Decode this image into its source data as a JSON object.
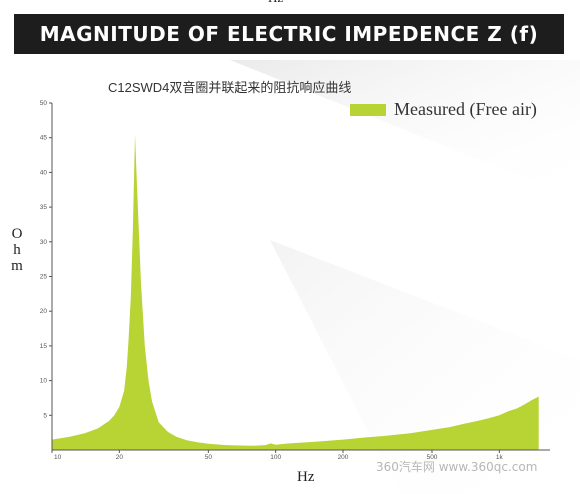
{
  "header": {
    "top_unit": "Hz",
    "title": "MAGNITUDE OF ELECTRIC IMPEDENCE Z (f)",
    "subtitle": "C12SWD4双音圈并联起来的阻抗响应曲线"
  },
  "watermark": "360汽车网 www.360qc.com",
  "colors": {
    "fill": "#b8d334",
    "title_bg": "#1d1d1d"
  },
  "chart_data": {
    "type": "area",
    "title": "MAGNITUDE OF ELECTRIC IMPEDENCE Z (f)",
    "subtitle": "C12SWD4双音圈并联起来的阻抗响应曲线",
    "xlabel": "Hz",
    "ylabel": "Ohm",
    "x_scale": "log",
    "xlim": [
      10,
      1600
    ],
    "ylim": [
      0,
      50
    ],
    "x_ticks": [
      10,
      20,
      50,
      100,
      200,
      500,
      1000
    ],
    "x_tick_labels": [
      "10",
      "20",
      "50",
      "100",
      "200",
      "500",
      "1k"
    ],
    "y_ticks": [
      5,
      10,
      15,
      20,
      25,
      30,
      35,
      40,
      45,
      50
    ],
    "y_tick_labels": [
      "5",
      "10",
      "15",
      "20",
      "25",
      "30",
      "35",
      "40",
      "45",
      "50"
    ],
    "legend": "top-right",
    "grid": false,
    "series": [
      {
        "name": "Measured (Free air)",
        "x": [
          10,
          12,
          14,
          16,
          18,
          19,
          20,
          21,
          21.6,
          22,
          22.5,
          23,
          23.5,
          24,
          25,
          26,
          27,
          28,
          30,
          33,
          36,
          40,
          45,
          50,
          60,
          70,
          80,
          90,
          95,
          100,
          110,
          120,
          150,
          200,
          250,
          300,
          400,
          500,
          600,
          700,
          800,
          900,
          1000,
          1100,
          1200,
          1300,
          1400,
          1500
        ],
        "y": [
          1.5,
          1.9,
          2.4,
          3.1,
          4.2,
          5.0,
          6.2,
          8.5,
          12,
          16,
          22,
          32,
          45.5,
          38,
          24,
          15,
          10,
          7,
          4,
          2.6,
          1.9,
          1.4,
          1.1,
          0.9,
          0.7,
          0.65,
          0.6,
          0.7,
          0.95,
          0.75,
          0.9,
          1.0,
          1.2,
          1.5,
          1.8,
          2.0,
          2.4,
          2.9,
          3.3,
          3.8,
          4.2,
          4.6,
          5.0,
          5.6,
          6.0,
          6.6,
          7.2,
          7.7
        ]
      }
    ]
  }
}
